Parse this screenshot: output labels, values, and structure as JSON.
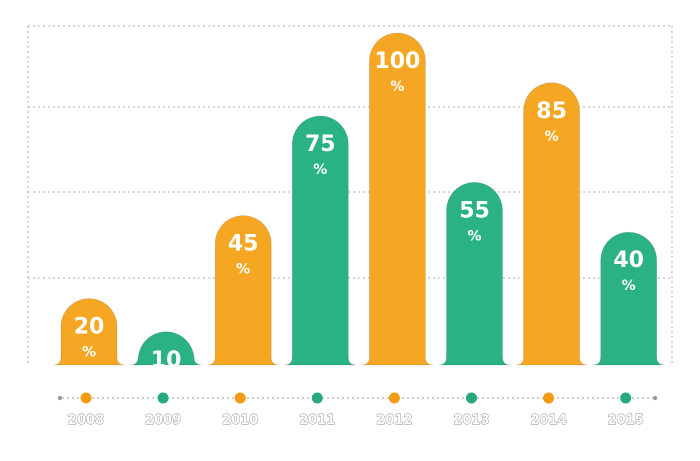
{
  "chart_data": {
    "type": "bar",
    "categories": [
      "2008",
      "2009",
      "2010",
      "2011",
      "2012",
      "2013",
      "2014",
      "2015"
    ],
    "values": [
      20,
      10,
      45,
      75,
      100,
      55,
      85,
      40
    ],
    "value_suffix": "%",
    "ylim": [
      0,
      100
    ],
    "grid": true,
    "legend": "none",
    "title": "",
    "xlabel": "",
    "ylabel": "",
    "colors": {
      "orange": "#f5a623",
      "green": "#2bb282",
      "orange_dot": "#f39c12",
      "green_dot": "#27a979"
    },
    "bar_colors": [
      "orange",
      "green",
      "orange",
      "green",
      "orange",
      "green",
      "orange",
      "green"
    ]
  }
}
